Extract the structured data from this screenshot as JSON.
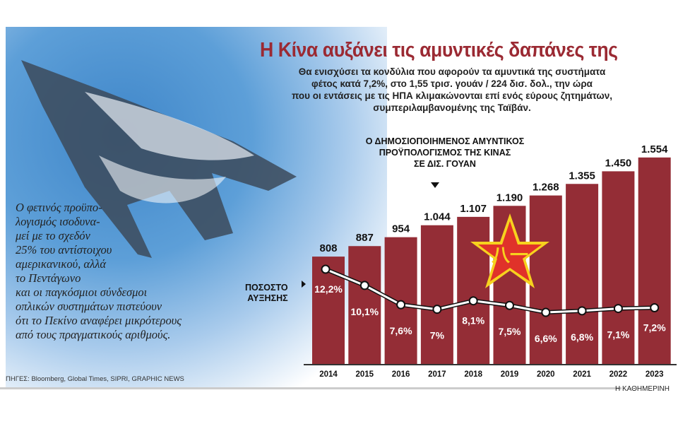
{
  "title": "Η Κίνα αυξάνει τις αμυντικές δαπάνες της",
  "subtitle": [
    "Θα ενισχύσει τα κονδύλια που αφορούν τα αμυντικά της συστήματα",
    "φέτος κατά 7,2%, στο 1,55 τρισ. γουάν / 224 δισ. δολ., την ώρα",
    "που οι εντάσεις με τις ΗΠΑ κλιμακώνονται επί ενός εύρους ζητημάτων,",
    "συμπεριλαμβανομένης της Ταϊβάν."
  ],
  "note": [
    "Ο φετινός προϋπο-",
    "λογισμός ισοδυνα-",
    "μεί με το σχεδόν",
    "25% του αντίστοιχου",
    "αμερικανικού, αλλά",
    "το Πεντάγωνο",
    "και οι παγκόσμιοι σύνδεσμοι",
    "οπλικών συστημάτων πιστεύουν",
    "ότι το Πεκίνο αναφέρει μικρότερους",
    "από τους πραγματικούς αριθμούς."
  ],
  "sources": "ΠΗΓΕΣ: Bloomberg, Global Times, SIPRI, GRAPHIC NEWS",
  "brand": "Η ΚΑΘΗΜΕΡΙΝΗ",
  "colors": {
    "bar": "#942d36",
    "title": "#9b2a33",
    "sky": "#5d9fd8"
  },
  "chart_data": {
    "type": "bar",
    "categories": [
      "2014",
      "2015",
      "2016",
      "2017",
      "2018",
      "2019",
      "2020",
      "2021",
      "2022",
      "2023"
    ],
    "series": [
      {
        "name": "Ο ΔΗΜΟΣΙΟΠΟΙΗΜΕΝΟΣ ΑΜΥΝΤΙΚΟΣ ΠΡΟΫΠΟΛΟΓΙΣΜΟΣ ΤΗΣ ΚΙΝΑΣ ΣΕ ΔΙΣ. ΓΟΥΑΝ",
        "type": "bar",
        "values": [
          808,
          887,
          954,
          1044,
          1107,
          1190,
          1268,
          1355,
          1450,
          1554
        ],
        "labels": [
          "808",
          "887",
          "954",
          "1.044",
          "1.107",
          "1.190",
          "1.268",
          "1.355",
          "1.450",
          "1.554"
        ]
      },
      {
        "name": "ΠΟΣΟΣΤΟ ΑΥΞΗΣΗΣ",
        "type": "line",
        "values": [
          12.2,
          10.1,
          7.6,
          7.0,
          8.1,
          7.5,
          6.6,
          6.8,
          7.1,
          7.2
        ],
        "labels": [
          "12,2",
          "10,1",
          "7,6",
          "7",
          "8,1",
          "7,5",
          "6,6",
          "6,8",
          "7,1",
          "7,2"
        ],
        "unit": "%"
      }
    ],
    "budget_label": [
      "Ο ΔΗΜΟΣΙΟΠΟΙΗΜΕΝΟΣ ΑΜΥΝΤΙΚΟΣ",
      "ΠΡΟΫΠΟΛΟΓΙΣΜΟΣ ΤΗΣ ΚΙΝΑΣ",
      "ΣΕ ΔΙΣ. ΓΟΥΑΝ"
    ],
    "pct_label": [
      "ΠΟΣΟΣΤΟ",
      "ΑΥΞΗΣΗΣ"
    ]
  }
}
